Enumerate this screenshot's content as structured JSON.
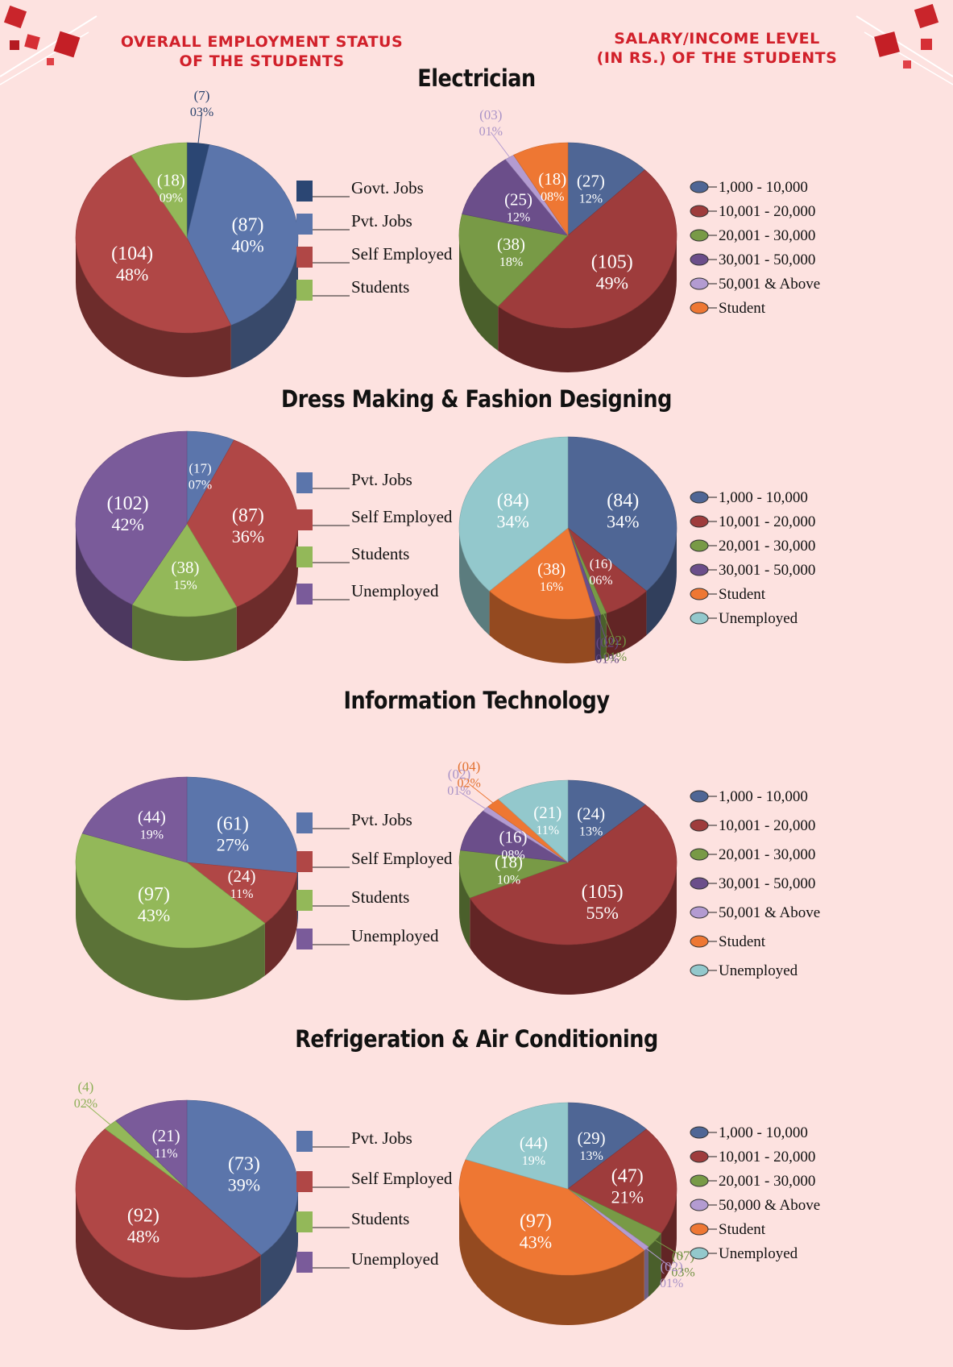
{
  "header": {
    "left_line1": "OVERALL EMPLOYMENT STATUS",
    "left_line2": "OF THE STUDENTS",
    "right_line1": "SALARY/INCOME LEVEL",
    "right_line2": "(IN RS.) OF THE STUDENTS"
  },
  "sections": [
    {
      "title": "Electrician"
    },
    {
      "title": "Dress Making & Fashion Designing"
    },
    {
      "title": "Information Technology"
    },
    {
      "title": "Refrigeration & Air Conditioning"
    }
  ],
  "colors": {
    "govt": "#2b4673",
    "pvt": "#5b75ab",
    "self": "#b04746",
    "students": "#93b859",
    "unemployed_emp": "#7a5b9a",
    "s1": "#4f6695",
    "s2": "#9e3c3c",
    "s3": "#789a46",
    "s4": "#6b4e8a",
    "s5": "#b39bd1",
    "student": "#ee7733",
    "unemployed": "#93c8cc"
  },
  "chart_data": [
    {
      "type": "pie",
      "section": "Electrician",
      "kind": "employment",
      "slices": [
        {
          "name": "Govt. Jobs",
          "value": 7,
          "label_count": "(7)",
          "label_pct": "03%",
          "color": "#2b4673"
        },
        {
          "name": "Pvt. Jobs",
          "value": 87,
          "label_count": "(87)",
          "label_pct": "40%",
          "color": "#5b75ab"
        },
        {
          "name": "Self Employed",
          "value": 104,
          "label_count": "(104)",
          "label_pct": "48%",
          "color": "#b04746"
        },
        {
          "name": "Students",
          "value": 18,
          "label_count": "(18)",
          "label_pct": "09%",
          "color": "#93b859"
        }
      ]
    },
    {
      "type": "pie",
      "section": "Electrician",
      "kind": "salary",
      "slices": [
        {
          "name": "1,000 - 10,000",
          "value": 27,
          "label_count": "(27)",
          "label_pct": "12%",
          "color": "#4f6695"
        },
        {
          "name": "10,001 - 20,000",
          "value": 105,
          "label_count": "(105)",
          "label_pct": "49%",
          "color": "#9e3c3c"
        },
        {
          "name": "20,001 - 30,000",
          "value": 38,
          "label_count": "(38)",
          "label_pct": "18%",
          "color": "#789a46"
        },
        {
          "name": "30,001 - 50,000",
          "value": 25,
          "label_count": "(25)",
          "label_pct": "12%",
          "color": "#6b4e8a"
        },
        {
          "name": "50,001 & Above",
          "value": 3,
          "label_count": "(03)",
          "label_pct": "01%",
          "color": "#b39bd1"
        },
        {
          "name": "Student",
          "value": 18,
          "label_count": "(18)",
          "label_pct": "08%",
          "color": "#ee7733"
        }
      ]
    },
    {
      "type": "pie",
      "section": "Dress Making & Fashion Designing",
      "kind": "employment",
      "slices": [
        {
          "name": "Pvt. Jobs",
          "value": 17,
          "label_count": "(17)",
          "label_pct": "07%",
          "color": "#5b75ab"
        },
        {
          "name": "Self Employed",
          "value": 87,
          "label_count": "(87)",
          "label_pct": "36%",
          "color": "#b04746"
        },
        {
          "name": "Students",
          "value": 38,
          "label_count": "(38)",
          "label_pct": "15%",
          "color": "#93b859"
        },
        {
          "name": "Unemployed",
          "value": 102,
          "label_count": "(102)",
          "label_pct": "42%",
          "color": "#7a5b9a"
        }
      ]
    },
    {
      "type": "pie",
      "section": "Dress Making & Fashion Designing",
      "kind": "salary",
      "slices": [
        {
          "name": "1,000 - 10,000",
          "value": 84,
          "label_count": "(84)",
          "label_pct": "34%",
          "color": "#4f6695"
        },
        {
          "name": "10,001 - 20,000",
          "value": 16,
          "label_count": "(16)",
          "label_pct": "06%",
          "color": "#9e3c3c"
        },
        {
          "name": "20,001 - 30,000",
          "value": 2,
          "label_count": "(02)",
          "label_pct": "01%",
          "color": "#789a46"
        },
        {
          "name": "30,001 - 50,000",
          "value": 2,
          "label_count": "(02)",
          "label_pct": "01%",
          "color": "#6b4e8a"
        },
        {
          "name": "Student",
          "value": 38,
          "label_count": "(38)",
          "label_pct": "16%",
          "color": "#ee7733"
        },
        {
          "name": "Unemployed",
          "value": 84,
          "label_count": "(84)",
          "label_pct": "34%",
          "color": "#93c8cc"
        }
      ]
    },
    {
      "type": "pie",
      "section": "Information Technology",
      "kind": "employment",
      "slices": [
        {
          "name": "Pvt. Jobs",
          "value": 61,
          "label_count": "(61)",
          "label_pct": "27%",
          "color": "#5b75ab"
        },
        {
          "name": "Self Employed",
          "value": 24,
          "label_count": "(24)",
          "label_pct": "11%",
          "color": "#b04746"
        },
        {
          "name": "Students",
          "value": 97,
          "label_count": "(97)",
          "label_pct": "43%",
          "color": "#93b859"
        },
        {
          "name": "Unemployed",
          "value": 44,
          "label_count": "(44)",
          "label_pct": "19%",
          "color": "#7a5b9a"
        }
      ]
    },
    {
      "type": "pie",
      "section": "Information Technology",
      "kind": "salary",
      "slices": [
        {
          "name": "1,000 - 10,000",
          "value": 24,
          "label_count": "(24)",
          "label_pct": "13%",
          "color": "#4f6695"
        },
        {
          "name": "10,001 - 20,000",
          "value": 105,
          "label_count": "(105)",
          "label_pct": "55%",
          "color": "#9e3c3c"
        },
        {
          "name": "20,001 - 30,000",
          "value": 18,
          "label_count": "(18)",
          "label_pct": "10%",
          "color": "#789a46"
        },
        {
          "name": "30,001 - 50,000",
          "value": 16,
          "label_count": "(16)",
          "label_pct": "08%",
          "color": "#6b4e8a"
        },
        {
          "name": "50,001 & Above",
          "value": 2,
          "label_count": "(02)",
          "label_pct": "01%",
          "color": "#b39bd1"
        },
        {
          "name": "Student",
          "value": 4,
          "label_count": "(04)",
          "label_pct": "02%",
          "color": "#ee7733"
        },
        {
          "name": "Unemployed",
          "value": 21,
          "label_count": "(21)",
          "label_pct": "11%",
          "color": "#93c8cc"
        }
      ]
    },
    {
      "type": "pie",
      "section": "Refrigeration & Air Conditioning",
      "kind": "employment",
      "slices": [
        {
          "name": "Pvt. Jobs",
          "value": 73,
          "label_count": "(73)",
          "label_pct": "39%",
          "color": "#5b75ab"
        },
        {
          "name": "Self Employed",
          "value": 92,
          "label_count": "(92)",
          "label_pct": "48%",
          "color": "#b04746"
        },
        {
          "name": "Students",
          "value": 4,
          "label_count": "(4)",
          "label_pct": "02%",
          "color": "#93b859"
        },
        {
          "name": "Unemployed",
          "value": 21,
          "label_count": "(21)",
          "label_pct": "11%",
          "color": "#7a5b9a"
        }
      ]
    },
    {
      "type": "pie",
      "section": "Refrigeration & Air Conditioning",
      "kind": "salary",
      "slices": [
        {
          "name": "1,000 - 10,000",
          "value": 29,
          "label_count": "(29)",
          "label_pct": "13%",
          "color": "#4f6695"
        },
        {
          "name": "10,001 - 20,000",
          "value": 47,
          "label_count": "(47)",
          "label_pct": "21%",
          "color": "#9e3c3c"
        },
        {
          "name": "20,001 - 30,000",
          "value": 7,
          "label_count": "(07)",
          "label_pct": "03%",
          "color": "#789a46"
        },
        {
          "name": "50,000 & Above",
          "value": 2,
          "label_count": "(02)",
          "label_pct": "01%",
          "color": "#b39bd1"
        },
        {
          "name": "Student",
          "value": 97,
          "label_count": "(97)",
          "label_pct": "43%",
          "color": "#ee7733"
        },
        {
          "name": "Unemployed",
          "value": 44,
          "label_count": "(44)",
          "label_pct": "19%",
          "color": "#93c8cc"
        }
      ]
    }
  ]
}
